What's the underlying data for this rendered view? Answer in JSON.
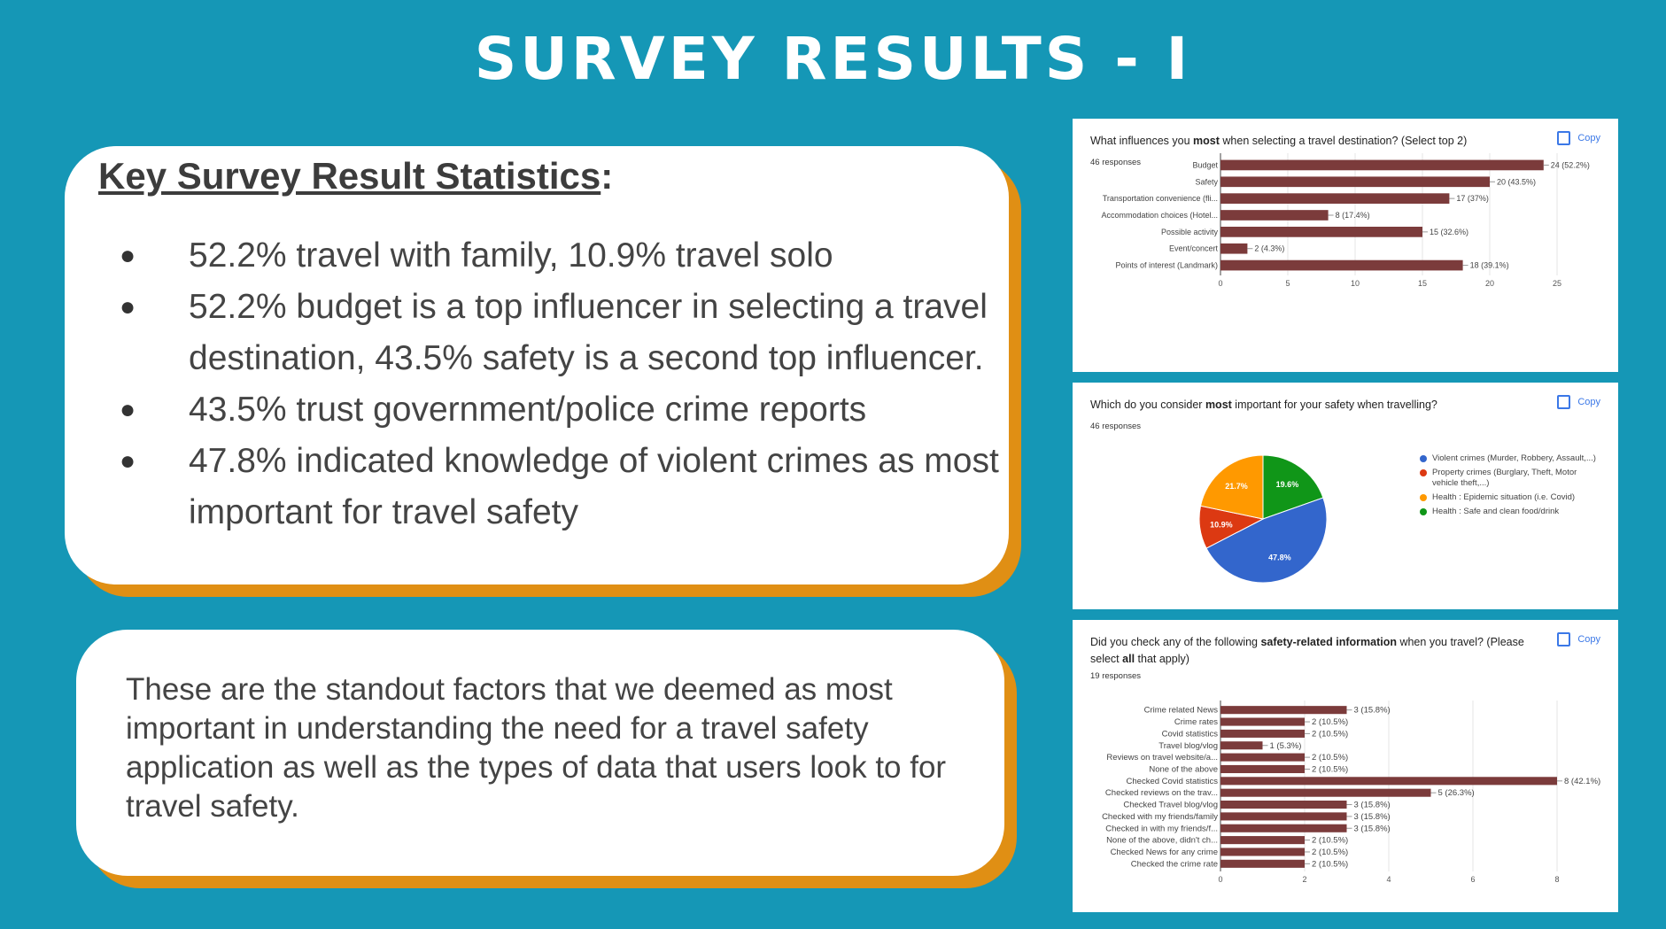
{
  "slide": {
    "title": "SURVEY RESULTS - I",
    "stats_heading": "Key Survey Result Statistics",
    "stats_heading_colon": ":",
    "bullets": [
      "52.2% travel with family, 10.9% travel solo",
      "52.2% budget is a top influencer in selecting a travel destination, 43.5% safety is a second top influencer.",
      "43.5% trust government/police crime reports",
      "47.8% indicated knowledge of violent crimes as most important for travel safety"
    ],
    "summary": "These are the standout factors that we deemed as most important in understanding the need for a travel safety application as well as the types of data that users look to for travel safety."
  },
  "chart_data": [
    {
      "type": "bar",
      "orientation": "horizontal",
      "question_pre": "What influences you ",
      "question_bold": "most",
      "question_post": " when selecting a travel destination? (Select top 2)",
      "responses": "46 responses",
      "copy_label": "Copy",
      "categories": [
        "Budget",
        "Safety",
        "Transportation convenience (fli...",
        "Accommodation choices (Hotel...",
        "Possible activity",
        "Event/concert",
        "Points of interest (Landmark)"
      ],
      "values": [
        24,
        20,
        17,
        8,
        15,
        2,
        18
      ],
      "value_labels": [
        "24 (52.2%)",
        "20 (43.5%)",
        "17 (37%)",
        "8 (17.4%)",
        "15 (32.6%)",
        "2 (4.3%)",
        "18 (39.1%)"
      ],
      "xticks": [
        "0",
        "5",
        "10",
        "15",
        "20",
        "25"
      ],
      "xlim": [
        0,
        25
      ],
      "bar_color": "#7b3b3b"
    },
    {
      "type": "pie",
      "question_pre": "Which do you consider ",
      "question_bold": "most",
      "question_post": " important for your safety when travelling?",
      "responses": "46 responses",
      "copy_label": "Copy",
      "slices": [
        {
          "label": "Violent crimes (Murder, Robbery, Assault,...)",
          "value": 47.8,
          "pct_label": "47.8%",
          "color": "#3366cc"
        },
        {
          "label": "Property crimes (Burglary, Theft, Motor vehicle theft,...)",
          "value": 10.9,
          "pct_label": "10.9%",
          "color": "#dc3912"
        },
        {
          "label": "Health : Epidemic situation (i.e. Covid)",
          "value": 21.7,
          "pct_label": "21.7%",
          "color": "#ff9900"
        },
        {
          "label": "Health : Safe and clean food/drink",
          "value": 19.6,
          "pct_label": "19.6%",
          "color": "#109618"
        }
      ]
    },
    {
      "type": "bar",
      "orientation": "horizontal",
      "question_pre": "Did you check any of the following ",
      "question_bold": "safety-related information",
      "question_post": " when you travel? (Please select ",
      "question_bold2": "all",
      "question_post2": " that apply)",
      "responses": "19 responses",
      "copy_label": "Copy",
      "categories": [
        "Crime related News",
        "Crime rates",
        "Covid statistics",
        "Travel blog/vlog",
        "Reviews on travel website/a...",
        "None of the above",
        "Checked Covid statistics",
        "Checked reviews on the trav...",
        "Checked Travel blog/vlog",
        "Checked with my friends/family",
        "Checked in with my friends/f...",
        "None of the above, didn't ch...",
        "Checked News for any crime",
        "Checked the crime rate"
      ],
      "values": [
        3,
        2,
        2,
        1,
        2,
        2,
        8,
        5,
        3,
        3,
        3,
        2,
        2,
        2
      ],
      "value_labels": [
        "3 (15.8%)",
        "2 (10.5%)",
        "2 (10.5%)",
        "1 (5.3%)",
        "2 (10.5%)",
        "2 (10.5%)",
        "8 (42.1%)",
        "5 (26.3%)",
        "3 (15.8%)",
        "3 (15.8%)",
        "3 (15.8%)",
        "2 (10.5%)",
        "2 (10.5%)",
        "2 (10.5%)"
      ],
      "xticks": [
        "0",
        "2",
        "4",
        "6",
        "8"
      ],
      "xlim": [
        0,
        8
      ],
      "bar_color": "#7b3b3b"
    }
  ]
}
